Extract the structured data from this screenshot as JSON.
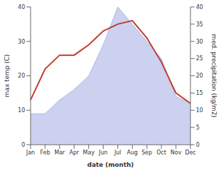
{
  "chart_data": {
    "type": "line",
    "categories": [
      "Jan",
      "Feb",
      "Mar",
      "Apr",
      "May",
      "Jun",
      "Jul",
      "Aug",
      "Sep",
      "Oct",
      "Nov",
      "Dec"
    ],
    "xlabel": "date (month)",
    "ylabel": "max temp (C)",
    "y2label": "med. precipitation (kg/m2)",
    "ylim": [
      0,
      40
    ],
    "yticks": [
      0,
      10,
      20,
      30,
      40
    ],
    "y2lim": [
      0,
      40
    ],
    "y2ticks": [
      0,
      5,
      10,
      15,
      20,
      25,
      30,
      35,
      40
    ],
    "grid": false,
    "series": [
      {
        "type": "area",
        "axis": "y2",
        "color": "#b0b8e8",
        "values": [
          9,
          9,
          13,
          16,
          20,
          29,
          40,
          35,
          30,
          25,
          14,
          12
        ]
      },
      {
        "type": "line",
        "color": "#c0392b",
        "values": [
          13,
          22,
          26,
          26,
          29,
          33,
          35,
          36,
          31,
          24,
          15,
          12
        ]
      }
    ]
  }
}
